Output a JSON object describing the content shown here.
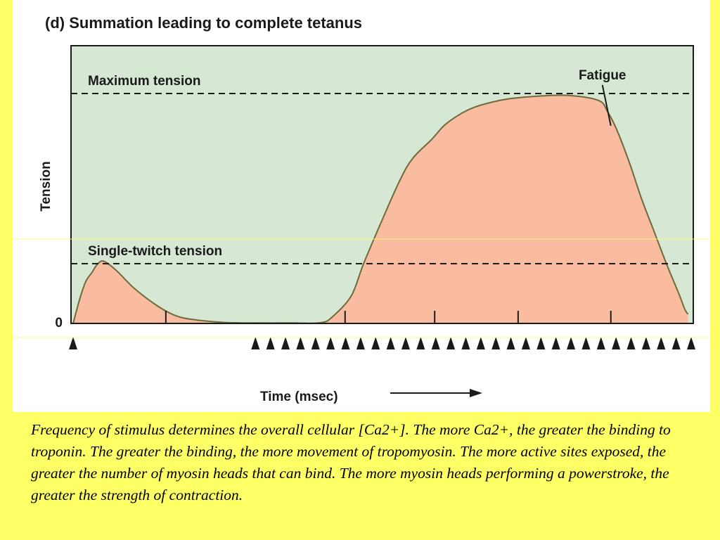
{
  "chart_data": {
    "type": "area",
    "title": "(d) Summation leading to complete tetanus",
    "xlabel": "Time (msec)",
    "ylabel": "Tension",
    "y_tick_labels": [
      "0"
    ],
    "xlim": [
      0,
      100
    ],
    "ylim": [
      0,
      100
    ],
    "grid": false,
    "reference_lines": [
      {
        "name": "Maximum tension",
        "y": 100
      },
      {
        "name": "Single-twitch tension",
        "y": 26
      }
    ],
    "annotations": [
      {
        "text": "Fatigue",
        "x": 87,
        "y": 86
      }
    ],
    "series": [
      {
        "x": [
          0,
          1,
          2,
          3,
          4,
          5,
          7,
          10,
          14,
          17,
          20,
          24,
          26,
          29,
          35,
          40,
          42,
          45,
          47,
          50,
          53,
          55,
          58,
          60,
          62,
          64,
          66,
          70,
          75,
          80,
          85,
          86.5,
          88,
          90,
          92,
          94,
          96,
          98,
          99,
          99.5
        ],
        "y": [
          0,
          10,
          18,
          22,
          26,
          27,
          23,
          15,
          7,
          3,
          1.5,
          0.5,
          0.3,
          0.2,
          0.2,
          0.3,
          3,
          12,
          26,
          45,
          63,
          72,
          80,
          86,
          90,
          93,
          95,
          97.5,
          98.8,
          99.2,
          97,
          92,
          84,
          70,
          54,
          40,
          26,
          13,
          6,
          4
        ]
      }
    ],
    "x_tick_marks": [
      15,
      44,
      58.5,
      72,
      87
    ],
    "stimuli": {
      "single": [
        0
      ],
      "train_start": 29.5,
      "train_end": 100,
      "train_count": 30
    },
    "colors": {
      "background": "#d6e7d4",
      "fill": "#f9bca1",
      "curve": "#6b6b3c",
      "axis": "#1a1a1a",
      "slide": "#ffff66"
    }
  },
  "caption": "Frequency of stimulus determines the overall cellular [Ca2+].  The more Ca2+, the greater the binding to troponin.  The greater the binding, the more movement of tropomyosin.  The more active sites exposed, the greater the number of myosin heads that can bind.  The more myosin heads performing a powerstroke, the greater the strength of contraction."
}
